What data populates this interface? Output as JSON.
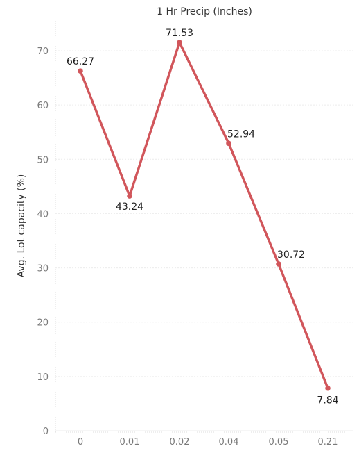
{
  "chart_data": {
    "type": "line",
    "title": "1 Hr Precip (Inches)",
    "xlabel": "",
    "ylabel": "Avg. Lot capacity (%)",
    "categories": [
      "0",
      "0.01",
      "0.02",
      "0.04",
      "0.05",
      "0.21"
    ],
    "series": [
      {
        "values": [
          66.27,
          43.24,
          71.53,
          52.94,
          30.72,
          7.84
        ],
        "labels": [
          "66.27",
          "43.24",
          "71.53",
          "52.94",
          "30.72",
          "7.84"
        ],
        "color": "#d1565b"
      }
    ],
    "ylim": [
      0,
      80
    ],
    "yticks": [
      0,
      10,
      20,
      30,
      40,
      50,
      60,
      70
    ],
    "ytick_labels": [
      "0",
      "10",
      "20",
      "30",
      "40",
      "50",
      "60",
      "70"
    ],
    "grid": true,
    "colors": {
      "grid": "#ececec",
      "tick_text": "#7a7a7a",
      "label_text": "#222222"
    }
  }
}
